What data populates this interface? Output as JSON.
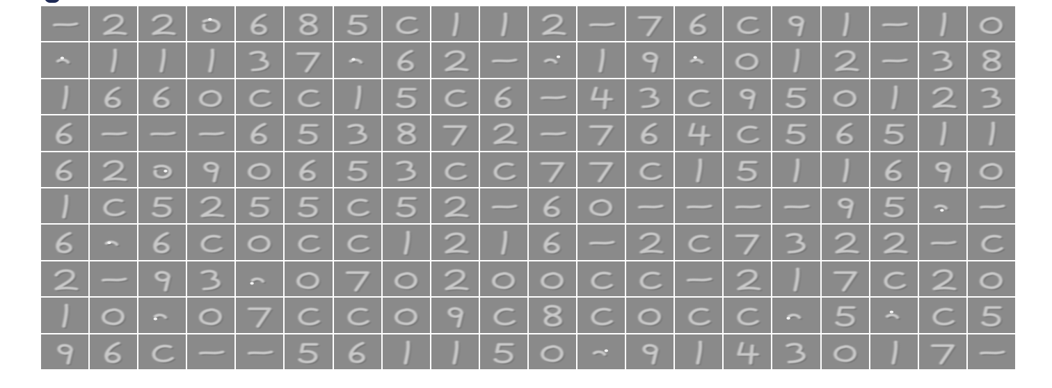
{
  "figure": {
    "rows": 10,
    "cols": 20,
    "tiles": [
      [
        "dash",
        "2",
        "2",
        "blob",
        "6",
        "8",
        "5",
        "c",
        "1",
        "1",
        "2",
        "dash",
        "7",
        "6",
        "c",
        "9",
        "1",
        "dash",
        "1",
        "0"
      ],
      [
        "dot",
        "1",
        "1",
        "1",
        "3",
        "7",
        "dot",
        "6",
        "2",
        "dash",
        "dot",
        "1",
        "9",
        "dot",
        "0",
        "1",
        "2",
        "dash",
        "3",
        "8"
      ],
      [
        "1",
        "6",
        "6",
        "0",
        "c",
        "c",
        "1",
        "5",
        "c",
        "6",
        "dash",
        "4",
        "3",
        "c",
        "9",
        "5",
        "0",
        "1",
        "2",
        "3"
      ],
      [
        "6",
        "dash",
        "dash",
        "dash",
        "6",
        "5",
        "3",
        "8",
        "7",
        "2",
        "dash",
        "7",
        "6",
        "4",
        "c",
        "5",
        "6",
        "5",
        "1",
        "1"
      ],
      [
        "6",
        "2",
        "blob",
        "9",
        "0",
        "6",
        "5",
        "3",
        "c",
        "c",
        "7",
        "7",
        "c",
        "1",
        "5",
        "1",
        "1",
        "6",
        "9",
        "0"
      ],
      [
        "1",
        "c",
        "5",
        "2",
        "5",
        "5",
        "c",
        "5",
        "2",
        "dash",
        "6",
        "0",
        "dash",
        "dash",
        "dash",
        "dash",
        "9",
        "5",
        "dot",
        "dash"
      ],
      [
        "6",
        "dot",
        "6",
        "c",
        "0",
        "c",
        "c",
        "1",
        "2",
        "1",
        "6",
        "dash",
        "2",
        "c",
        "7",
        "3",
        "2",
        "2",
        "dash",
        "c"
      ],
      [
        "2",
        "dash",
        "9",
        "3",
        "dot",
        "0",
        "7",
        "0",
        "2",
        "0",
        "0",
        "c",
        "c",
        "dash",
        "2",
        "1",
        "7",
        "c",
        "2",
        "0"
      ],
      [
        "1",
        "0",
        "dot",
        "0",
        "7",
        "c",
        "c",
        "0",
        "9",
        "c",
        "8",
        "c",
        "0",
        "c",
        "c",
        "dot",
        "5",
        "dot",
        "c",
        "5"
      ],
      [
        "9",
        "6",
        "c",
        "dash",
        "dash",
        "5",
        "6",
        "1",
        "1",
        "5",
        "0",
        "dot",
        "9",
        "1",
        "4",
        "3",
        "0",
        "1",
        "7",
        "dash"
      ]
    ]
  }
}
